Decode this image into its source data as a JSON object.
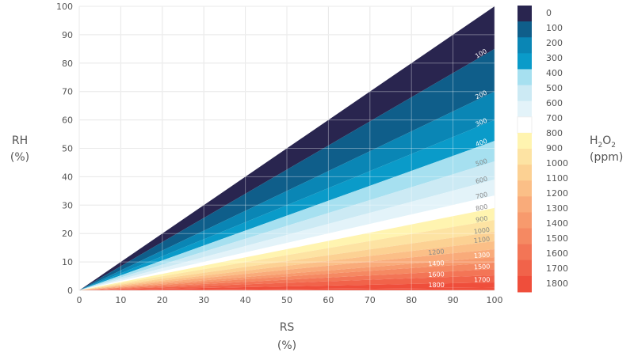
{
  "chart_data": {
    "type": "area",
    "title": "",
    "xlabel": "RS",
    "xlabel_unit": "(%)",
    "ylabel": "RH",
    "ylabel_unit": "(%)",
    "xlim": [
      0,
      100
    ],
    "ylim": [
      0,
      100
    ],
    "xticks": [
      "0",
      "10",
      "20",
      "30",
      "40",
      "50",
      "60",
      "70",
      "80",
      "90",
      "100"
    ],
    "yticks": [
      "0",
      "10",
      "20",
      "30",
      "40",
      "50",
      "60",
      "70",
      "80",
      "90",
      "100"
    ],
    "grid": true,
    "description_of_contours": "Contour lines radiate from origin; value = RH at RS=100 for each contour level",
    "contours": [
      {
        "level": "100",
        "rh_at_rs100": 85
      },
      {
        "level": "200",
        "rh_at_rs100": 70
      },
      {
        "level": "300",
        "rh_at_rs100": 60
      },
      {
        "level": "400",
        "rh_at_rs100": 52.6
      },
      {
        "level": "500",
        "rh_at_rs100": 45.4
      },
      {
        "level": "600",
        "rh_at_rs100": 39
      },
      {
        "level": "700",
        "rh_at_rs100": 33.4
      },
      {
        "level": "800",
        "rh_at_rs100": 29
      },
      {
        "level": "900",
        "rh_at_rs100": 24.8
      },
      {
        "level": "1000",
        "rh_at_rs100": 20.6
      },
      {
        "level": "1100",
        "rh_at_rs100": 17.3
      },
      {
        "level": "1200",
        "rh_at_rs100": 14.5
      },
      {
        "level": "1300",
        "rh_at_rs100": 11.7
      },
      {
        "level": "1400",
        "rh_at_rs100": 9.8
      },
      {
        "level": "1500",
        "rh_at_rs100": 7.5
      },
      {
        "level": "1600",
        "rh_at_rs100": 5.3
      },
      {
        "level": "1700",
        "rh_at_rs100": 2.8
      },
      {
        "level": "1800",
        "rh_at_rs100": 1.0
      }
    ],
    "band_colors": [
      "#29254f",
      "#0f5e8a",
      "#0a86b5",
      "#0a9bc9",
      "#a6e0f0",
      "#cceaf4",
      "#e3f3f9",
      "#ffffff",
      "#fff4b0",
      "#fde3a3",
      "#fcd193",
      "#fbbf87",
      "#f9ab7a",
      "#f79a6d",
      "#f58962",
      "#f37556",
      "#f1634a",
      "#ef4e3b"
    ],
    "colorbar": {
      "title_main": "H",
      "title_sub1": "2",
      "title_mid": "O",
      "title_sub2": "2",
      "title_unit": "(ppm)",
      "labels": [
        "0",
        "100",
        "200",
        "300",
        "400",
        "500",
        "600",
        "700",
        "800",
        "900",
        "1000",
        "1100",
        "1200",
        "1300",
        "1400",
        "1500",
        "1600",
        "1700",
        "1800"
      ]
    }
  }
}
